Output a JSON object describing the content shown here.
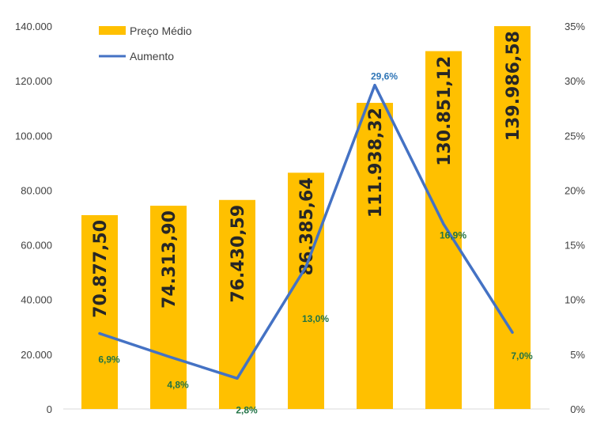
{
  "chart_data": {
    "type": "bar",
    "title": "",
    "xlabel": "",
    "ylabel": "",
    "categories": [
      "",
      "",
      "",
      "",
      "",
      "",
      ""
    ],
    "ylim": [
      0,
      140000
    ],
    "y2lim": [
      0,
      35
    ],
    "left_ticks": [
      "0",
      "20.000",
      "40.000",
      "60.000",
      "80.000",
      "100.000",
      "120.000",
      "140.000"
    ],
    "right_ticks": [
      "0%",
      "5%",
      "10%",
      "15%",
      "20%",
      "25%",
      "30%",
      "35%"
    ],
    "legend_position": "top-left",
    "grid": false,
    "series": [
      {
        "name": "Preço Médio",
        "type": "bar",
        "axis": "left",
        "color": "#FFC000",
        "values": [
          70877.5,
          74313.9,
          76430.59,
          86385.64,
          111938.32,
          130851.12,
          139986.58
        ],
        "labels": [
          "70.877,50",
          "74.313,90",
          "76.430,59",
          "86.385,64",
          "111.938,32",
          "130.851,12",
          "139.986,58"
        ]
      },
      {
        "name": "Aumento",
        "type": "line",
        "axis": "right",
        "color": "#4472C4",
        "values": [
          6.9,
          4.8,
          2.8,
          13.0,
          29.6,
          16.9,
          7.0
        ],
        "labels": [
          "6,9%",
          "4,8%",
          "2,8%",
          "13,0%",
          "29,6%",
          "16,9%",
          "7,0%"
        ],
        "label_colors": [
          "#217346",
          "#217346",
          "#217346",
          "#217346",
          "#2E75B6",
          "#217346",
          "#217346"
        ]
      }
    ]
  }
}
